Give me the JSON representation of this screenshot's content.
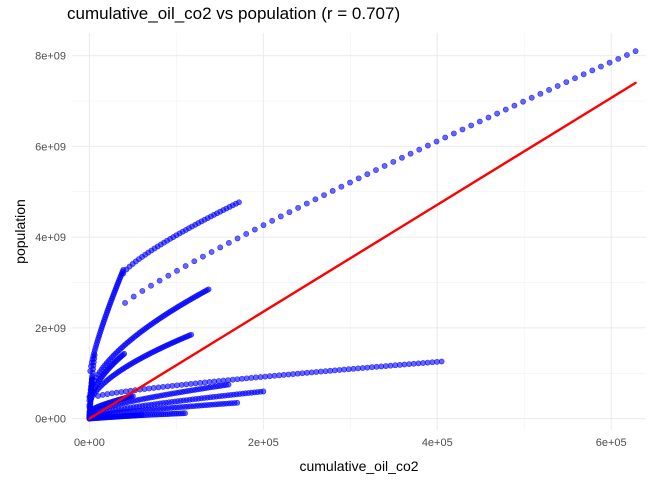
{
  "chart_data": {
    "type": "scatter",
    "title": "cumulative_oil_co2 vs population (r = 0.707)",
    "xlabel": "cumulative_oil_co2",
    "ylabel": "population",
    "xlim": [
      -20000,
      640000
    ],
    "ylim": [
      -250000000,
      8500000000
    ],
    "x_ticks": [
      0,
      200000,
      400000,
      600000
    ],
    "x_tick_labels": [
      "0e+00",
      "2e+05",
      "4e+05",
      "6e+05"
    ],
    "y_ticks": [
      0,
      2000000000,
      4000000000,
      6000000000,
      8000000000
    ],
    "y_tick_labels": [
      "0e+00",
      "2e+09",
      "4e+09",
      "6e+09",
      "8e+09"
    ],
    "grid": true,
    "point_color": "#0000ff",
    "line_color": "#ff0000",
    "regression_line": {
      "x": [
        0,
        628000
      ],
      "y": [
        0,
        7400000000
      ]
    },
    "series": [
      {
        "x_start": 41000,
        "x_end": 628000,
        "y_start": 2550000000,
        "y_end": 8100000000,
        "n": 60,
        "shape": 0.9
      },
      {
        "x_start": 1000,
        "x_end": 39000,
        "y_start": 1050000000,
        "y_end": 3280000000,
        "n": 45,
        "shape": 0.8
      },
      {
        "x_start": 39000,
        "x_end": 172000,
        "y_start": 3200000000,
        "y_end": 4770000000,
        "n": 38,
        "shape": 0.8
      },
      {
        "x_start": 0,
        "x_end": 137000,
        "y_start": 480000000,
        "y_end": 2850000000,
        "n": 70,
        "shape": 0.6
      },
      {
        "x_start": 0,
        "x_end": 117000,
        "y_start": 300000000,
        "y_end": 1850000000,
        "n": 60,
        "shape": 0.6
      },
      {
        "x_start": 0,
        "x_end": 40000,
        "y_start": 250000000,
        "y_end": 1430000000,
        "n": 30,
        "shape": 0.55
      },
      {
        "x_start": 0,
        "x_end": 6000,
        "y_start": 400000000,
        "y_end": 1400000000,
        "n": 14,
        "shape": 1.0
      },
      {
        "x_start": 10000,
        "x_end": 405000,
        "y_start": 500000000,
        "y_end": 1260000000,
        "n": 75,
        "shape": 0.8
      },
      {
        "x_start": 0,
        "x_end": 160000,
        "y_start": 100000000,
        "y_end": 750000000,
        "n": 55,
        "shape": 0.7
      },
      {
        "x_start": 0,
        "x_end": 200000,
        "y_start": 60000000,
        "y_end": 600000000,
        "n": 60,
        "shape": 0.75
      },
      {
        "x_start": 0,
        "x_end": 170000,
        "y_start": 50000000,
        "y_end": 350000000,
        "n": 55,
        "shape": 0.8
      },
      {
        "x_start": 0,
        "x_end": 110000,
        "y_start": 20000000,
        "y_end": 120000000,
        "n": 45,
        "shape": 1.0
      },
      {
        "x_start": 0,
        "x_end": 60000,
        "y_start": 0,
        "y_end": 80000000,
        "n": 30,
        "shape": 1.0
      },
      {
        "x_start": 0,
        "x_end": 50000,
        "y_start": 150000000,
        "y_end": 500000000,
        "n": 30,
        "shape": 0.7
      },
      {
        "x_start": 0,
        "x_end": 3000,
        "y_start": 0,
        "y_end": 900000000,
        "n": 25,
        "shape": 1.0
      }
    ]
  }
}
